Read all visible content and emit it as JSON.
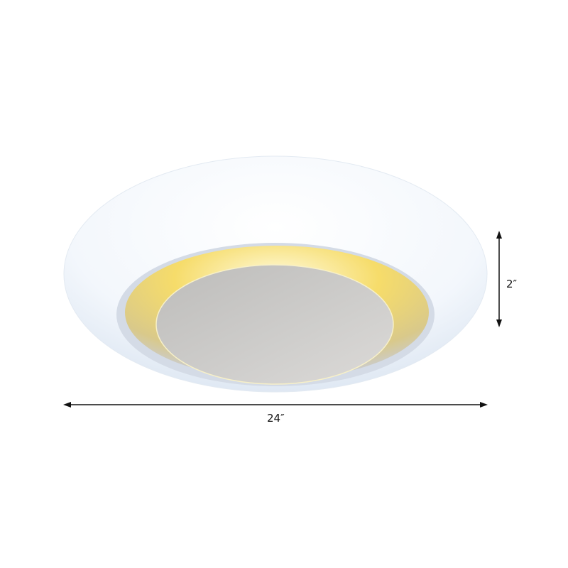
{
  "product": {
    "name_icon": "flush-mount-ceiling-light",
    "colors": {
      "shade": "#f4f8fc",
      "glow": "#f5d65a",
      "disc": "#c9c8c6"
    }
  },
  "dimensions": {
    "width_label": "24″",
    "height_label": "2″"
  }
}
